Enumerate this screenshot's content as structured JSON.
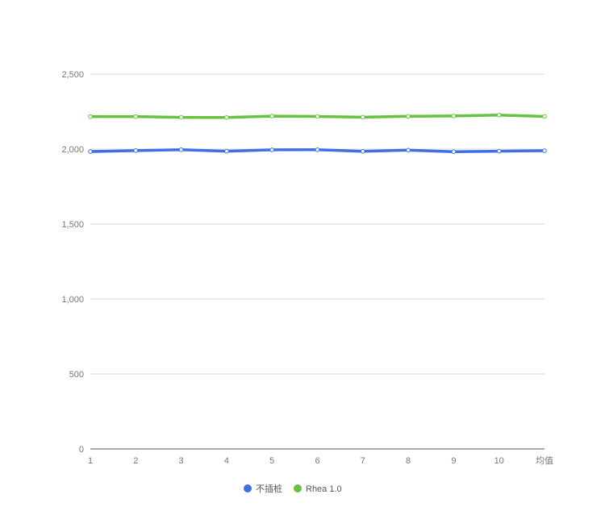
{
  "chart_data": {
    "type": "line",
    "title": "",
    "xlabel": "",
    "ylabel": "",
    "categories": [
      "1",
      "2",
      "3",
      "4",
      "5",
      "6",
      "7",
      "8",
      "9",
      "10",
      "均值"
    ],
    "ylim": [
      0,
      2500
    ],
    "yticks": [
      0,
      500,
      1000,
      1500,
      2000,
      2500
    ],
    "ytick_labels": [
      "0",
      "500",
      "1,000",
      "1,500",
      "2,000",
      "2,500"
    ],
    "grid": true,
    "legend_position": "bottom-center",
    "series": [
      {
        "name": "不插桩",
        "color": "#3f6fe3",
        "values": [
          1984,
          1990,
          1996,
          1986,
          1995,
          1996,
          1985,
          1993,
          1983,
          1986,
          1989
        ]
      },
      {
        "name": "Rhea 1.0",
        "color": "#66c33f",
        "values": [
          2217,
          2217,
          2212,
          2211,
          2220,
          2218,
          2213,
          2219,
          2221,
          2227,
          2218
        ]
      }
    ]
  }
}
